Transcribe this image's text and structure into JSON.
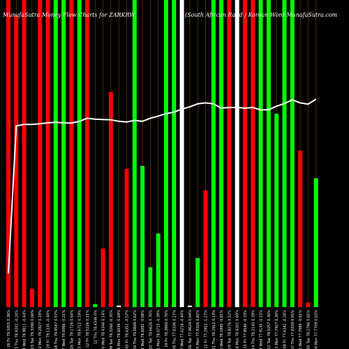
{
  "header": {
    "left": "MunafaSutra  Money Flow  Charts for ZARKRW",
    "right": "(South African Rand / Korean Won) MunafaSutra.com"
  },
  "chart_data": {
    "type": "bar",
    "title": "MunafaSutra  Money Flow  Charts for ZARKRW",
    "subtitle": "(South African Rand / Korean Won) MunafaSutra.com",
    "ylim": [
      0,
      100
    ],
    "categories": [
      "26 Fri 79.1055 0.36%",
      "25 Thu 78.8201 -0.20%",
      "24 Wed 78.9811 -0.44%",
      "23 Tue 79.3290 0.06%",
      "22 Mon 79.2827 0.19%",
      "19 Fri 79.1335 -0.40%",
      "18 Thu 79.4547 0.57%",
      "17 Wed 79.0066 -0.21%",
      "16 Tue 79.1726 0.64%",
      "15 Mon 78.6712 0.19%",
      "12 Fri 78.5226 0.11%",
      "11 Thu 78.4346 0%",
      "10 Wed 78.4346 0.14%",
      "09 Tue 78.3260 -0.35%",
      "08 Mon 78.6034 -0.04%",
      "05 Fri 78.6352 -0.57%",
      "04 Thu 79.0849 0.62%",
      "03 Wed 78.6002 -0.08%",
      "02 Tue 78.6626 0.76%",
      "01 Mon 78.0715 -0.39%",
      "29 Fri 78.3800 0.70%",
      "28 Thu 77.8336 0.27%",
      "27 Wed 77.6216 -0.44%",
      "26 Tue 77.9624 0.04%",
      "25 Mon 77.9326 0.82%",
      "22 Fri 77.2952 -1.27%",
      "21 Thu 78.2912 0.13%",
      "20 Wed 78.1895 -0.81%",
      "19 Tue 78.8276 0.52%",
      "18 Mon 78.4201 0.60%",
      "15 Fri 77.9540 -0.33%",
      "14 Thu 78.2145 0.39%",
      "13 Wed 77.9145 -0.15%",
      "12 Tue 78.0257 0.30%",
      "11 Mon 77.7927 0.20%",
      "08 Fri 77.6342 -0.26%",
      "07 Thu 77.8339 0.05%",
      "06 Wed 77.7989 -0.61%",
      "05 Tue 78.2796 0.65%",
      "04 Mon 77.7709 0.03%"
    ],
    "series": [
      {
        "values": [
          100,
          95,
          100,
          6,
          100,
          100,
          100,
          100,
          100,
          100,
          100,
          1,
          19,
          70,
          0.5,
          45,
          100,
          46,
          13,
          24,
          100,
          100,
          100,
          0.5,
          16,
          38,
          100,
          100,
          100,
          100,
          100,
          100,
          100,
          100,
          63,
          100,
          100,
          51,
          1.5,
          42
        ],
        "colors": [
          "#ff0000",
          "#ff0000",
          "#ff0000",
          "#ff0000",
          "#ff0000",
          "#ff0000",
          "#00ff00",
          "#00ff00",
          "#ff0000",
          "#00ff00",
          "#ff0000",
          "#00ff00",
          "#ff0000",
          "#ff0000",
          "#ffffff",
          "#ff0000",
          "#00ff00",
          "#00ff00",
          "#00ff00",
          "#00ff00",
          "#00ff00",
          "#00ff00",
          "#ffffff",
          "#ffffff",
          "#00ff00",
          "#ff0000",
          "#00ff00",
          "#00ff00",
          "#ff0000",
          "#ffffff",
          "#ff0000",
          "#ff0000",
          "#00ff00",
          "#00ff00",
          "#00ff00",
          "#00ff00",
          "#00ff00",
          "#ff0000",
          "#ff0000",
          "#00ff00"
        ]
      },
      {
        "type": "line",
        "values": [
          11,
          59,
          59.5,
          59.5,
          59.7,
          60,
          60.2,
          60,
          59.9,
          60.5,
          61.5,
          61.2,
          61.1,
          61,
          60.5,
          60.3,
          60.8,
          60.5,
          61.5,
          62.2,
          63,
          63.5,
          64.5,
          65.2,
          66.2,
          66.5,
          66.2,
          64.8,
          65,
          65,
          64.8,
          65,
          64.2,
          64.3,
          65.4,
          66.3,
          67.5,
          66.5,
          66.1,
          67.7
        ]
      }
    ],
    "grid": true,
    "legend": "none",
    "bar_colors": {
      "up": "#00ff00",
      "down": "#ff0000",
      "neutral": "#ffffff"
    },
    "line_color": "#ffffff",
    "grid_color": "#8b5a00"
  }
}
